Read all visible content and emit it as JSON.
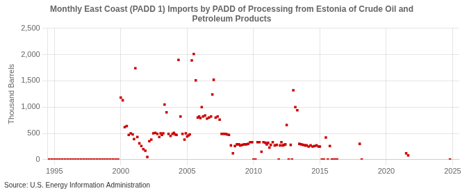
{
  "chart_data": {
    "type": "scatter",
    "title": "Monthly East Coast (PADD 1) Imports by PADD of Processing from Estonia of Crude Oil and\nPetroleum Products",
    "ylabel": "Thousand Barrels",
    "annotation": "Source: U.S. Energy Information Administration",
    "color": "#cc0000",
    "marker": "square",
    "grid": true,
    "xlim": [
      1994.5,
      2025.5
    ],
    "xticks": [
      1995,
      2000,
      2005,
      2010,
      2015,
      2020,
      2025
    ],
    "ylim": [
      0,
      2500
    ],
    "yticks": [
      0,
      500,
      {
        "value": 1000,
        "label": "1,000"
      },
      {
        "value": 1500,
        "label": "1,500"
      },
      {
        "value": 2000,
        "label": "2,000"
      },
      {
        "value": 2500,
        "label": "2,500"
      }
    ],
    "x": [
      1994.6,
      1994.8,
      1995.0,
      1995.2,
      1995.4,
      1995.6,
      1995.8,
      1996.0,
      1996.2,
      1996.4,
      1996.6,
      1996.8,
      1997.0,
      1997.2,
      1997.4,
      1997.6,
      1997.8,
      1998.0,
      1998.2,
      1998.4,
      1998.6,
      1998.8,
      1999.0,
      1999.2,
      1999.4,
      1999.6,
      1999.8,
      2000.0,
      2000.15,
      2000.3,
      2000.45,
      2000.6,
      2000.75,
      2000.9,
      2001.0,
      2001.1,
      2001.25,
      2001.4,
      2001.55,
      2001.7,
      2001.85,
      2002.0,
      2002.15,
      2002.3,
      2002.45,
      2002.6,
      2002.75,
      2002.9,
      2003.0,
      2003.1,
      2003.2,
      2003.3,
      2003.45,
      2003.6,
      2003.75,
      2003.9,
      2004.0,
      2004.1,
      2004.2,
      2004.35,
      2004.5,
      2004.65,
      2004.8,
      2004.9,
      2005.0,
      2005.1,
      2005.2,
      2005.35,
      2005.5,
      2005.65,
      2005.8,
      2005.9,
      2006.0,
      2006.1,
      2006.2,
      2006.35,
      2006.5,
      2006.65,
      2006.8,
      2006.9,
      2007.0,
      2007.15,
      2007.3,
      2007.45,
      2007.6,
      2007.75,
      2007.9,
      2008.0,
      2008.15,
      2008.3,
      2008.45,
      2008.6,
      2008.75,
      2008.9,
      2009.0,
      2009.15,
      2009.3,
      2009.45,
      2009.6,
      2009.75,
      2009.9,
      2010.0,
      2010.15,
      2010.3,
      2010.45,
      2010.6,
      2010.75,
      2010.9,
      2011.0,
      2011.1,
      2011.2,
      2011.3,
      2011.45,
      2011.6,
      2011.75,
      2011.9,
      2012.0,
      2012.1,
      2012.2,
      2012.3,
      2012.4,
      2012.5,
      2012.65,
      2012.8,
      2012.9,
      2013.0,
      2013.15,
      2013.3,
      2013.45,
      2013.6,
      2013.75,
      2013.9,
      2014.0,
      2014.15,
      2014.3,
      2014.45,
      2014.6,
      2014.75,
      2014.9,
      2015.0,
      2015.15,
      2015.3,
      2015.45,
      2015.6,
      2015.75,
      2015.9,
      2016.0,
      2016.15,
      2016.3,
      2018.0,
      2018.15,
      2021.5,
      2021.65,
      2024.8
    ],
    "values": [
      0,
      0,
      0,
      0,
      0,
      0,
      0,
      0,
      0,
      0,
      0,
      0,
      0,
      0,
      0,
      0,
      0,
      0,
      0,
      0,
      0,
      0,
      0,
      0,
      0,
      0,
      0,
      1180,
      1130,
      620,
      640,
      470,
      500,
      480,
      390,
      1740,
      430,
      310,
      260,
      200,
      170,
      50,
      350,
      380,
      500,
      510,
      490,
      430,
      500,
      470,
      500,
      1050,
      900,
      490,
      450,
      490,
      510,
      480,
      470,
      1900,
      820,
      490,
      380,
      500,
      440,
      460,
      480,
      1890,
      2010,
      1510,
      800,
      820,
      790,
      1000,
      820,
      840,
      780,
      800,
      820,
      1240,
      1520,
      800,
      820,
      760,
      490,
      490,
      490,
      480,
      470,
      270,
      120,
      260,
      290,
      290,
      270,
      280,
      290,
      290,
      300,
      330,
      330,
      0,
      0,
      330,
      330,
      150,
      330,
      320,
      290,
      320,
      230,
      280,
      330,
      270,
      280,
      0,
      270,
      330,
      270,
      280,
      290,
      660,
      0,
      280,
      0,
      1320,
      1000,
      940,
      300,
      290,
      280,
      270,
      270,
      250,
      270,
      250,
      260,
      270,
      250,
      250,
      0,
      0,
      420,
      0,
      260,
      0,
      0,
      0,
      0,
      300,
      0,
      120,
      80,
      0
    ]
  }
}
